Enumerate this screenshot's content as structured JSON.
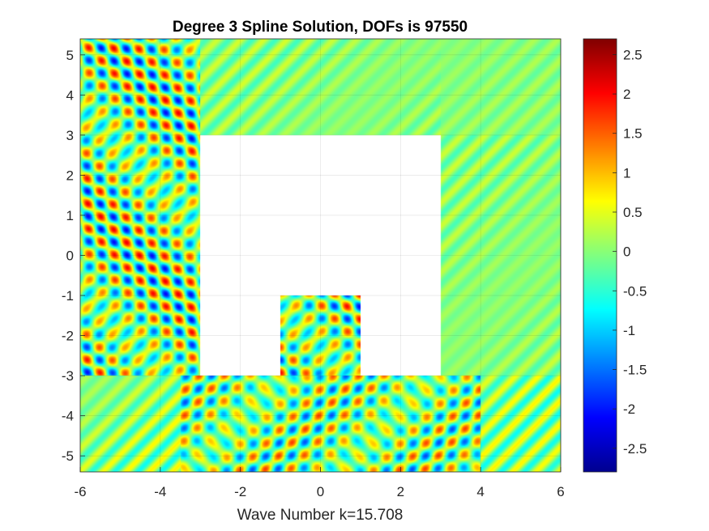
{
  "chart_data": {
    "type": "heatmap",
    "title": "Degree 3 Spline Solution, DOFs is 97550",
    "xlabel": "Wave Number k=15.708",
    "ylabel": "",
    "xlim": [
      -6,
      6
    ],
    "ylim": [
      -5.4,
      5.4
    ],
    "x_ticks": [
      "-6",
      "-4",
      "-2",
      "0",
      "2",
      "4",
      "6"
    ],
    "x_tick_values": [
      -6,
      -4,
      -2,
      0,
      2,
      4,
      6
    ],
    "y_ticks": [
      "5",
      "4",
      "3",
      "2",
      "1",
      "0",
      "-1",
      "-2",
      "-3",
      "-4",
      "-5"
    ],
    "y_tick_values": [
      5,
      4,
      3,
      2,
      1,
      0,
      -1,
      -2,
      -3,
      -4,
      -5
    ],
    "grid": true,
    "colormap": "jet",
    "colorbar": {
      "range": [
        -2.8,
        2.7
      ],
      "ticks": [
        "2.5",
        "2",
        "1.5",
        "1",
        "0.5",
        "0",
        "-0.5",
        "-1",
        "-1.5",
        "-2",
        "-2.5"
      ],
      "tick_values": [
        2.5,
        2,
        1.5,
        1,
        0.5,
        0,
        -0.5,
        -1,
        -1.5,
        -2,
        -2.5
      ]
    },
    "excluded_regions": [
      {
        "x": [
          -3,
          3
        ],
        "y": [
          -3,
          3
        ]
      },
      {
        "x_inner": [
          -1,
          1
        ],
        "y_inner": [
          -3,
          -1
        ],
        "note_value": "field"
      }
    ],
    "wave_number": 15.708
  }
}
